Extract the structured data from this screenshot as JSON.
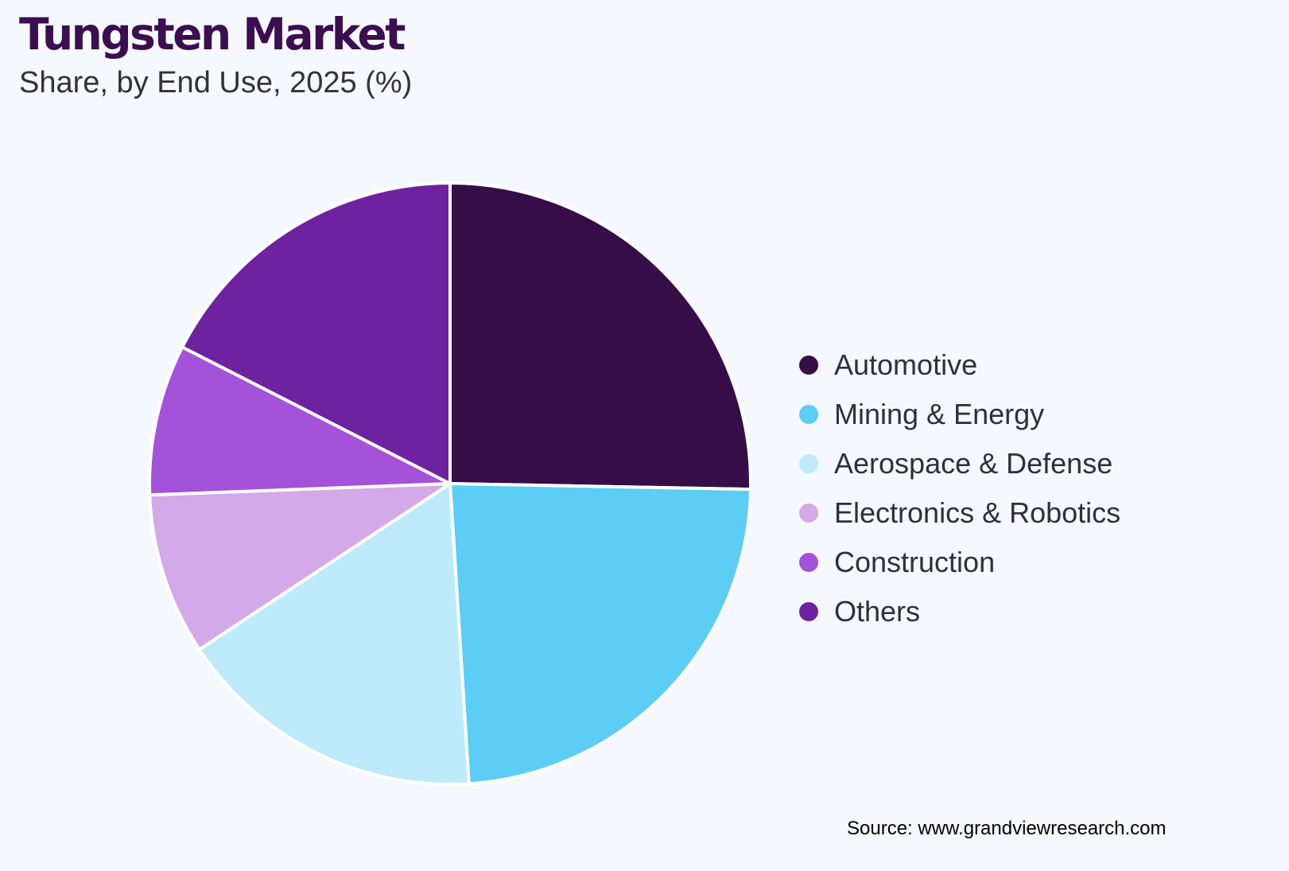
{
  "title": "Tungsten Market",
  "subtitle": "Share, by End Use, 2025 (%)",
  "source": "Source: www.grandviewresearch.com",
  "chart_data": {
    "type": "pie",
    "categories": [
      "Automotive",
      "Mining & Energy",
      "Aerospace & Defense",
      "Electronics & Robotics",
      "Construction",
      "Others"
    ],
    "values": [
      25.3,
      23.7,
      16.7,
      8.7,
      8.1,
      17.5
    ],
    "colors": [
      "#360e47",
      "#5ccdf5",
      "#bdebfb",
      "#d4a9e8",
      "#a452da",
      "#6e22a0"
    ],
    "legend_position": "right"
  }
}
